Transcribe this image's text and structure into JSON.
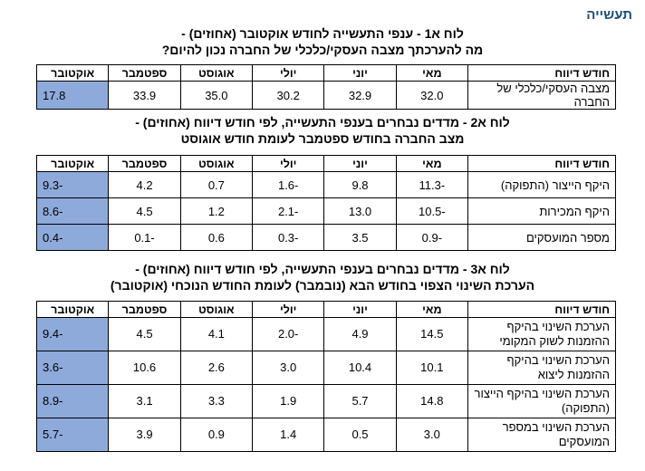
{
  "section_title": "תעשייה",
  "months": [
    "מאי",
    "יוני",
    "יולי",
    "אוגוסט",
    "ספטמבר",
    "אוקטובר"
  ],
  "row_header": "חודש דיווח",
  "table1": {
    "title_line1": "לוח א1 - ענפי התעשייה לחודש אוקטובר (אחוזים) -",
    "title_line2": "מה להערכתך מצבה העסקי/כלכלי של החברה נכון להיום?",
    "rows": [
      {
        "label": "מצבה העסקי/כלכלי של החברה",
        "values": [
          "32.0",
          "32.9",
          "30.2",
          "35.0",
          "33.9",
          "17.8"
        ]
      }
    ]
  },
  "table2": {
    "title_line1": "לוח א2 - מדדים נבחרים בענפי התעשייה, לפי חודש דיווח (אחוזים) -",
    "title_line2": "מצב החברה בחודש ספטמבר לעומת חודש אוגוסט",
    "rows": [
      {
        "label": "היקף הייצור (התפוקה)",
        "values": [
          "-11.3",
          "9.8",
          "-1.6",
          "0.7",
          "4.2",
          "-9.3"
        ]
      },
      {
        "label": "היקף המכירות",
        "values": [
          "-10.5",
          "13.0",
          "-2.1",
          "1.2",
          "4.5",
          "-8.6"
        ]
      },
      {
        "label": "מספר המועסקים",
        "values": [
          "-0.9",
          "3.5",
          "-0.3",
          "0.6",
          "-0.1",
          "-0.4"
        ]
      }
    ]
  },
  "table3": {
    "title_line1": "לוח א3 - מדדים נבחרים בענפי התעשייה, לפי חודש דיווח (אחוזים) -",
    "title_line2": "הערכת השינוי הצפוי בחודש הבא (נובמבר) לעומת החודש הנוכחי (אוקטובר)",
    "rows": [
      {
        "label": "הערכת השינוי בהיקף ההזמנות לשוק המקומי",
        "values": [
          "14.5",
          "4.9",
          "-2.0",
          "4.1",
          "4.5",
          "-9.4"
        ]
      },
      {
        "label": "הערכת השינוי בהיקף ההזמנות ליצוא",
        "values": [
          "10.1",
          "10.4",
          "3.0",
          "2.6",
          "10.6",
          "-3.6"
        ]
      },
      {
        "label": "הערכת השינוי בהיקף הייצור (התפוקה)",
        "values": [
          "14.8",
          "5.7",
          "1.9",
          "3.3",
          "3.1",
          "-8.9"
        ]
      },
      {
        "label": "הערכת השינוי במספר המועסקים",
        "values": [
          "3.0",
          "0.5",
          "1.4",
          "0.9",
          "3.9",
          "-5.7"
        ]
      }
    ]
  }
}
